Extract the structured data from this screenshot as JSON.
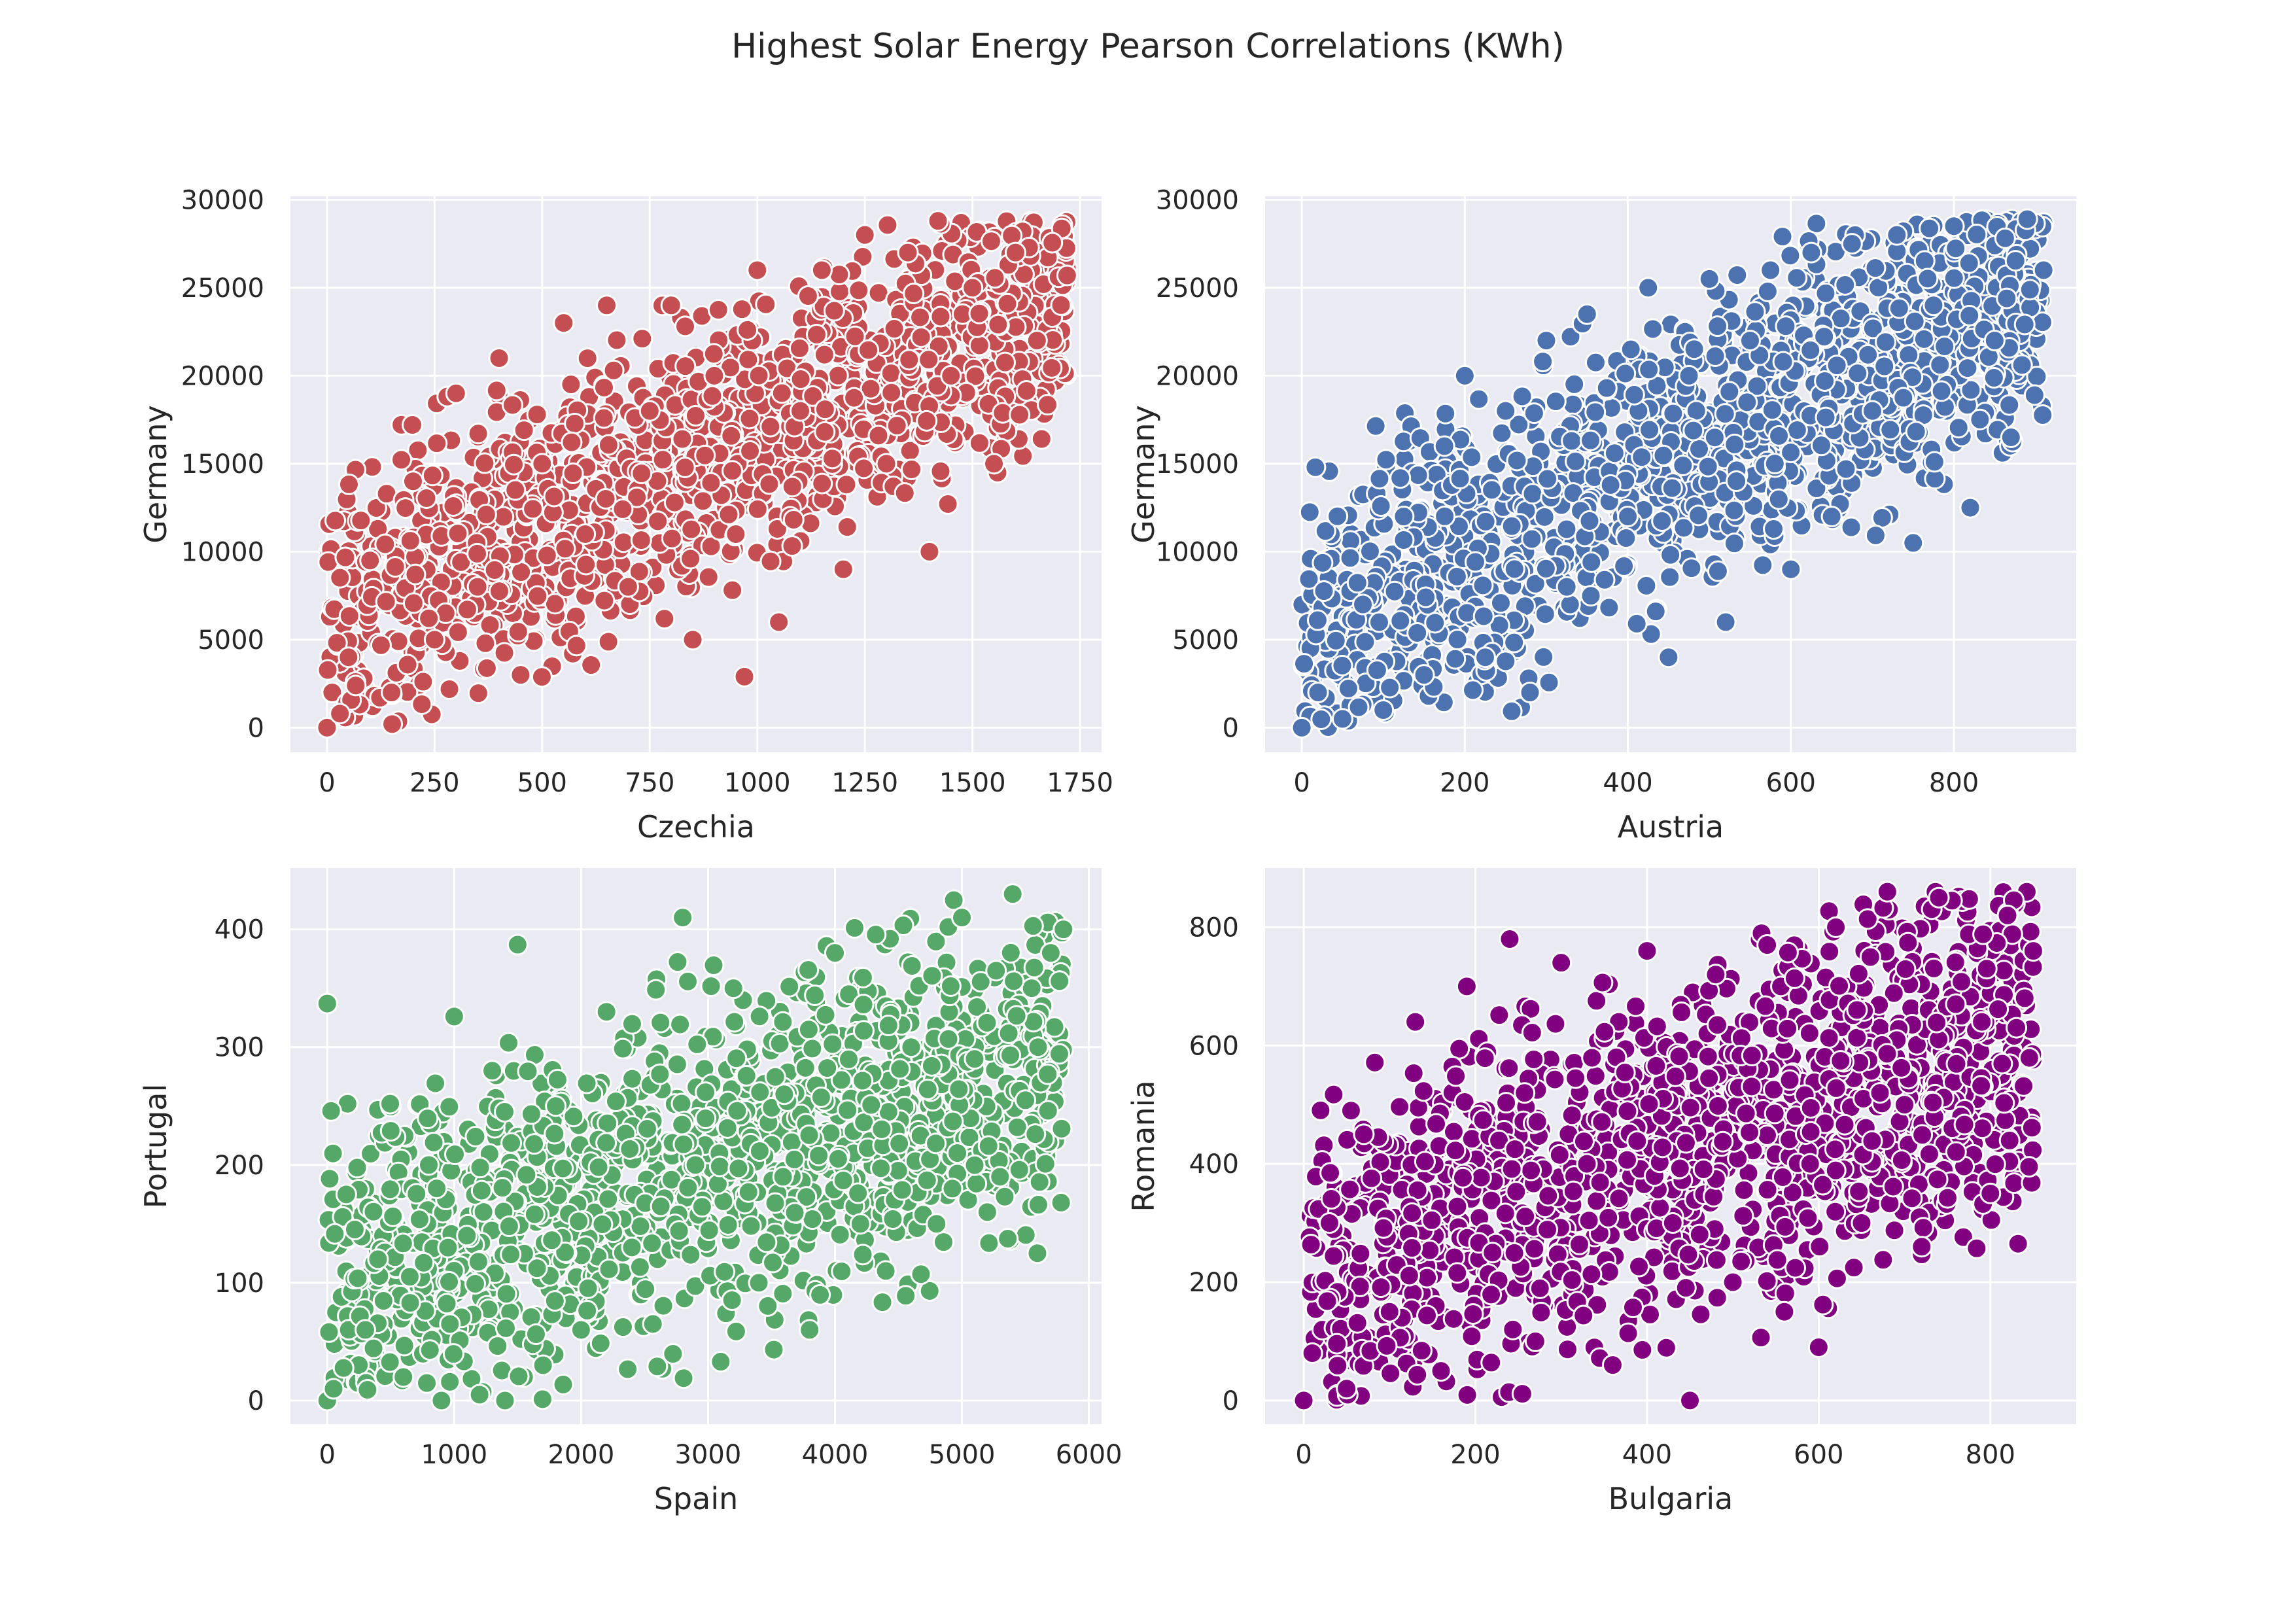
{
  "figure": {
    "title": "Highest Solar Energy Pearson Correlations (KWh)"
  },
  "chart_data": [
    {
      "type": "scatter",
      "xlabel": "Czechia",
      "ylabel": "Germany",
      "color": "#c44e52",
      "xlim": [
        -85,
        1800
      ],
      "ylim": [
        -1400,
        30200
      ],
      "xticks": [
        0,
        250,
        500,
        750,
        1000,
        1250,
        1500,
        1750
      ],
      "yticks": [
        0,
        5000,
        10000,
        15000,
        20000,
        25000,
        30000
      ],
      "grid": true,
      "approx_points": [
        [
          0,
          0
        ],
        [
          30,
          800
        ],
        [
          50,
          4000
        ],
        [
          100,
          9500
        ],
        [
          150,
          2000
        ],
        [
          200,
          14000
        ],
        [
          250,
          5000
        ],
        [
          300,
          19000
        ],
        [
          350,
          8000
        ],
        [
          400,
          21000
        ],
        [
          450,
          3000
        ],
        [
          500,
          15000
        ],
        [
          550,
          23000
        ],
        [
          600,
          11000
        ],
        [
          650,
          24000
        ],
        [
          700,
          8000
        ],
        [
          750,
          18000
        ],
        [
          800,
          24000
        ],
        [
          850,
          5000
        ],
        [
          900,
          20000
        ],
        [
          950,
          11000
        ],
        [
          970,
          2900
        ],
        [
          1000,
          26000
        ],
        [
          1050,
          6000
        ],
        [
          1100,
          18000
        ],
        [
          1150,
          26000
        ],
        [
          1200,
          9000
        ],
        [
          1250,
          28000
        ],
        [
          1300,
          15000
        ],
        [
          1350,
          27000
        ],
        [
          1400,
          10000
        ],
        [
          1420,
          28800
        ],
        [
          1450,
          20000
        ],
        [
          1500,
          25000
        ],
        [
          1550,
          15000
        ],
        [
          1600,
          27000
        ],
        [
          1650,
          22000
        ],
        [
          1700,
          25600
        ],
        [
          1720,
          25700
        ]
      ]
    },
    {
      "type": "scatter",
      "xlabel": "Austria",
      "ylabel": "Germany",
      "color": "#4c72b0",
      "xlim": [
        -45,
        950
      ],
      "ylim": [
        -1400,
        30200
      ],
      "xticks": [
        0,
        200,
        400,
        600,
        800
      ],
      "yticks": [
        0,
        5000,
        10000,
        15000,
        20000,
        25000,
        30000
      ],
      "grid": true,
      "approx_points": [
        [
          0,
          0
        ],
        [
          20,
          2000
        ],
        [
          50,
          500
        ],
        [
          75,
          7000
        ],
        [
          100,
          1000
        ],
        [
          125,
          12000
        ],
        [
          150,
          3000
        ],
        [
          175,
          16000
        ],
        [
          200,
          20000
        ],
        [
          225,
          4000
        ],
        [
          250,
          18000
        ],
        [
          280,
          2000
        ],
        [
          300,
          22000
        ],
        [
          325,
          8000
        ],
        [
          350,
          23500
        ],
        [
          400,
          12000
        ],
        [
          425,
          25000
        ],
        [
          450,
          4000
        ],
        [
          475,
          20000
        ],
        [
          500,
          25500
        ],
        [
          520,
          6000
        ],
        [
          550,
          22000
        ],
        [
          575,
          26000
        ],
        [
          600,
          9000
        ],
        [
          625,
          27000
        ],
        [
          650,
          12000
        ],
        [
          675,
          27500
        ],
        [
          700,
          18000
        ],
        [
          730,
          28000
        ],
        [
          750,
          10500
        ],
        [
          775,
          24000
        ],
        [
          800,
          28500
        ],
        [
          820,
          12500
        ],
        [
          850,
          22000
        ],
        [
          870,
          16500
        ],
        [
          890,
          28900
        ],
        [
          910,
          26000
        ]
      ]
    },
    {
      "type": "scatter",
      "xlabel": "Spain",
      "ylabel": "Portugal",
      "color": "#55a868",
      "xlim": [
        -290,
        6100
      ],
      "ylim": [
        -20,
        452
      ],
      "xticks": [
        0,
        1000,
        2000,
        3000,
        4000,
        5000,
        6000
      ],
      "yticks": [
        0,
        100,
        200,
        300,
        400
      ],
      "grid": true,
      "approx_points": [
        [
          0,
          337
        ],
        [
          0,
          0
        ],
        [
          50,
          10
        ],
        [
          150,
          175
        ],
        [
          300,
          60
        ],
        [
          400,
          120
        ],
        [
          500,
          229
        ],
        [
          600,
          20
        ],
        [
          800,
          200
        ],
        [
          900,
          0
        ],
        [
          1000,
          326
        ],
        [
          1100,
          140
        ],
        [
          1200,
          5
        ],
        [
          1300,
          280
        ],
        [
          1400,
          0
        ],
        [
          1500,
          387
        ],
        [
          1700,
          30
        ],
        [
          1800,
          250
        ],
        [
          2000,
          60
        ],
        [
          2200,
          330
        ],
        [
          2400,
          130
        ],
        [
          2600,
          29
        ],
        [
          2800,
          410
        ],
        [
          2900,
          200
        ],
        [
          3100,
          33
        ],
        [
          3200,
          350
        ],
        [
          3400,
          100
        ],
        [
          3600,
          260
        ],
        [
          3800,
          60
        ],
        [
          4000,
          380
        ],
        [
          4200,
          150
        ],
        [
          4400,
          110
        ],
        [
          4600,
          300
        ],
        [
          4800,
          150
        ],
        [
          5000,
          410
        ],
        [
          5100,
          290
        ],
        [
          5200,
          160
        ],
        [
          5300,
          190
        ],
        [
          5400,
          430
        ],
        [
          5500,
          255
        ],
        [
          5600,
          300
        ],
        [
          5700,
          380
        ],
        [
          5800,
          400
        ]
      ]
    },
    {
      "type": "scatter",
      "xlabel": "Bulgaria",
      "ylabel": "Romania",
      "color": "#800080",
      "xlim": [
        -45,
        900
      ],
      "ylim": [
        -40,
        900
      ],
      "xticks": [
        0,
        200,
        400,
        600,
        800
      ],
      "yticks": [
        0,
        200,
        400,
        600,
        800
      ],
      "grid": true,
      "approx_points": [
        [
          0,
          0
        ],
        [
          10,
          80
        ],
        [
          30,
          300
        ],
        [
          50,
          20
        ],
        [
          70,
          450
        ],
        [
          100,
          150
        ],
        [
          130,
          640
        ],
        [
          160,
          50
        ],
        [
          190,
          700
        ],
        [
          220,
          250
        ],
        [
          240,
          780
        ],
        [
          270,
          100
        ],
        [
          300,
          740
        ],
        [
          330,
          400
        ],
        [
          360,
          60
        ],
        [
          400,
          760
        ],
        [
          430,
          300
        ],
        [
          450,
          0
        ],
        [
          480,
          720
        ],
        [
          500,
          200
        ],
        [
          540,
          770
        ],
        [
          560,
          150
        ],
        [
          590,
          400
        ],
        [
          600,
          90
        ],
        [
          620,
          800
        ],
        [
          650,
          300
        ],
        [
          680,
          860
        ],
        [
          700,
          500
        ],
        [
          720,
          260
        ],
        [
          740,
          850
        ],
        [
          760,
          420
        ],
        [
          790,
          640
        ],
        [
          800,
          350
        ],
        [
          820,
          820
        ],
        [
          840,
          680
        ],
        [
          850,
          760
        ]
      ]
    }
  ]
}
